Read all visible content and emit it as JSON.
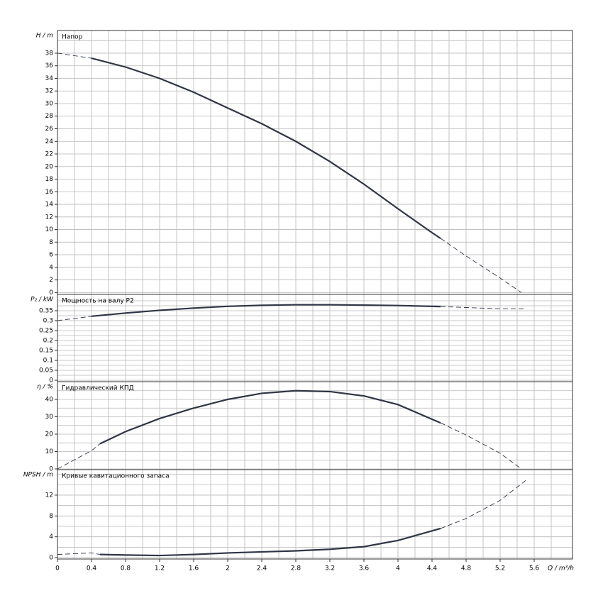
{
  "chart_data": [
    {
      "type": "line",
      "title": "Напор",
      "ylabel": "H / m",
      "x": [
        0,
        0.4,
        0.8,
        1.2,
        1.6,
        2,
        2.4,
        2.8,
        3.2,
        3.6,
        4,
        4.4,
        4.5,
        4.8,
        5.2,
        5.45
      ],
      "values": [
        38,
        37.2,
        35.8,
        34,
        31.8,
        29.3,
        26.8,
        24,
        20.8,
        17.2,
        13.3,
        9.5,
        8.6,
        5.8,
        2.3,
        0
      ],
      "solid_range": [
        0.4,
        4.5
      ],
      "xlim": [
        0,
        6.05
      ],
      "xticks": [
        0,
        0.4,
        0.8,
        1.2,
        1.6,
        2,
        2.4,
        2.8,
        3.2,
        3.6,
        4,
        4.4,
        4.8,
        5.2,
        5.6
      ],
      "xminorticks": [
        0.2,
        0.6,
        1,
        1.4,
        1.8,
        2.2,
        2.6,
        3,
        3.4,
        3.8,
        4.2,
        4.6,
        5,
        5.4,
        5.8
      ],
      "ylim": [
        -0.3,
        41.6
      ],
      "yticks": [
        0,
        2,
        4,
        6,
        8,
        10,
        12,
        14,
        16,
        18,
        20,
        22,
        24,
        26,
        28,
        30,
        32,
        34,
        36,
        38
      ],
      "yminorticks": [
        40
      ],
      "grid": true
    },
    {
      "type": "line",
      "title": "Мощность на валу P2",
      "ylabel": "P₂ / kW",
      "x": [
        0,
        0.4,
        0.8,
        1.2,
        1.6,
        2,
        2.4,
        2.8,
        3.2,
        3.6,
        4,
        4.5,
        4.8,
        5.2,
        5.5
      ],
      "values": [
        0.3,
        0.322,
        0.338,
        0.352,
        0.363,
        0.372,
        0.377,
        0.38,
        0.38,
        0.378,
        0.376,
        0.371,
        0.366,
        0.36,
        0.36
      ],
      "solid_range": [
        0.4,
        4.5
      ],
      "xlim": [
        0,
        6.05
      ],
      "ylim": [
        -0.007,
        0.432
      ],
      "yticks": [
        0,
        0.05,
        0.1,
        0.15,
        0.2,
        0.25,
        0.3,
        0.35
      ],
      "yminorticks": [
        0.025,
        0.075,
        0.125,
        0.175,
        0.225,
        0.275,
        0.325,
        0.375,
        0.4
      ],
      "grid": true
    },
    {
      "type": "line",
      "title": "Гидравлический КПД",
      "ylabel": "η / %",
      "x": [
        0,
        0.4,
        0.5,
        0.8,
        1.2,
        1.6,
        2,
        2.4,
        2.8,
        3.2,
        3.6,
        4,
        4.5,
        4.8,
        5.2,
        5.45
      ],
      "values": [
        0,
        10.5,
        14.5,
        21.5,
        29,
        35,
        40,
        43.5,
        45,
        44.5,
        42,
        37,
        26.5,
        19.5,
        9,
        0
      ],
      "solid_range": [
        0.5,
        4.5
      ],
      "xlim": [
        0,
        6.05
      ],
      "ylim": [
        -0.4,
        50.2
      ],
      "yticks": [
        0,
        10,
        20,
        30,
        40
      ],
      "yminorticks": [
        5,
        15,
        25,
        35,
        45
      ],
      "grid": true
    },
    {
      "type": "line",
      "title": "Кривые кавитационного запаса",
      "ylabel": "NPSH / m",
      "xlabel": "Q / m³/h",
      "x": [
        0,
        0.4,
        0.5,
        0.8,
        1.2,
        1.6,
        2,
        2.4,
        2.8,
        3.2,
        3.6,
        4,
        4.5,
        4.8,
        5.2,
        5.5
      ],
      "values": [
        0.6,
        0.9,
        0.6,
        0.5,
        0.4,
        0.6,
        0.9,
        1.1,
        1.3,
        1.6,
        2.1,
        3.3,
        5.6,
        7.5,
        11,
        14.8
      ],
      "solid_range": [
        0.5,
        4.5
      ],
      "xlim": [
        0,
        6.05
      ],
      "ylim": [
        -0.27,
        16.9
      ],
      "yticks": [
        0,
        4,
        8,
        12
      ],
      "yminorticks": [
        2,
        6,
        10,
        14,
        16
      ],
      "grid": true
    }
  ]
}
